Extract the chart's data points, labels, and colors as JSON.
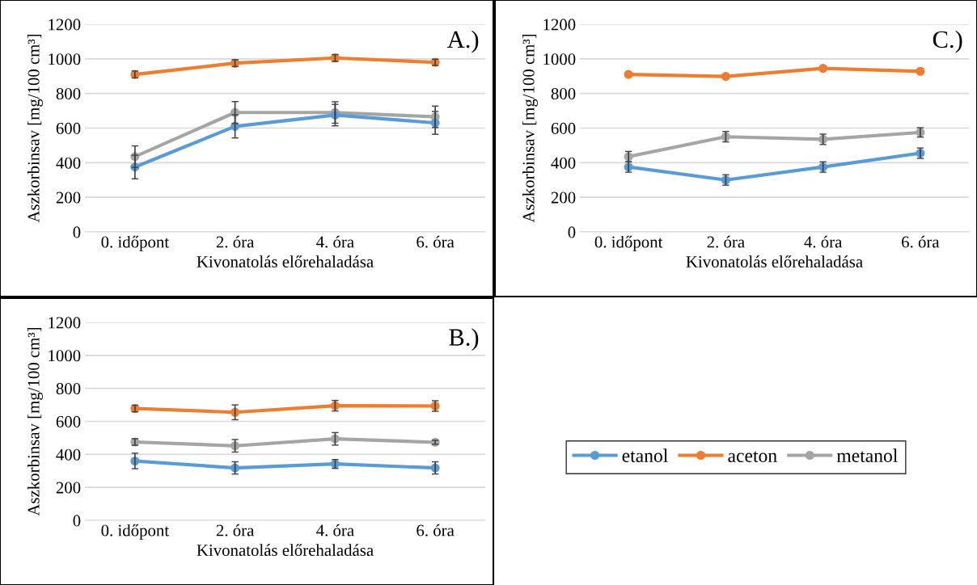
{
  "chart_data": [
    {
      "type": "line",
      "title": "A.)",
      "xlabel": "Kivonatolás előrehaladása",
      "ylabel": "Aszkorbinsav [mg/100 cm³]",
      "categories": [
        "0. időpont",
        "2. óra",
        "4. óra",
        "6. óra"
      ],
      "ylim": [
        0,
        1200
      ],
      "yticks": [
        0,
        200,
        400,
        600,
        800,
        1000,
        1200
      ],
      "grid": "y",
      "marker": "circle",
      "legend": false,
      "series": [
        {
          "color": "#5b9bd5",
          "values": [
            375,
            610,
            675,
            630
          ],
          "errors": [
            68,
            67,
            62,
            66
          ]
        },
        {
          "color": "#ed7d31",
          "values": [
            910,
            975,
            1005,
            980
          ],
          "errors": [
            20,
            20,
            20,
            18
          ]
        },
        {
          "color": "#a5a5a5",
          "values": [
            435,
            690,
            690,
            665
          ],
          "errors": [
            62,
            63,
            62,
            62
          ]
        }
      ]
    },
    {
      "type": "line",
      "title": "C.)",
      "xlabel": "Kivonatolás előrehaladása",
      "ylabel": "Aszkorbinsav [mg/100 cm³]",
      "categories": [
        "0. időpont",
        "2. óra",
        "4. óra",
        "6. óra"
      ],
      "ylim": [
        0,
        1200
      ],
      "yticks": [
        0,
        200,
        400,
        600,
        800,
        1000,
        1200
      ],
      "grid": "y",
      "marker": "circle",
      "legend": false,
      "series": [
        {
          "color": "#5b9bd5",
          "values": [
            375,
            300,
            375,
            455
          ],
          "errors": [
            30,
            30,
            30,
            30
          ]
        },
        {
          "color": "#ed7d31",
          "values": [
            910,
            898,
            945,
            928
          ]
        },
        {
          "color": "#a5a5a5",
          "values": [
            435,
            550,
            535,
            575
          ],
          "errors": [
            30,
            30,
            30,
            27
          ]
        }
      ]
    },
    {
      "type": "line",
      "title": "B.)",
      "xlabel": "Kivonatolás előrehaladása",
      "ylabel": "Aszkorbinsav [mg/100 cm³]",
      "categories": [
        "0. időpont",
        "2. óra",
        "4. óra",
        "6. óra"
      ],
      "ylim": [
        0,
        1200
      ],
      "yticks": [
        0,
        200,
        400,
        600,
        800,
        1000,
        1200
      ],
      "grid": "y",
      "marker": "circle",
      "legend": "right",
      "series": [
        {
          "name": "etanol",
          "color": "#5b9bd5",
          "values": [
            360,
            318,
            342,
            318
          ],
          "errors": [
            47,
            37,
            27,
            37
          ]
        },
        {
          "name": "aceton",
          "color": "#ed7d31",
          "values": [
            678,
            655,
            695,
            693
          ],
          "errors": [
            20,
            45,
            32,
            32
          ]
        },
        {
          "name": "metanol",
          "color": "#a5a5a5",
          "values": [
            475,
            452,
            494,
            473
          ],
          "errors": [
            20,
            38,
            38,
            12
          ]
        }
      ]
    }
  ]
}
